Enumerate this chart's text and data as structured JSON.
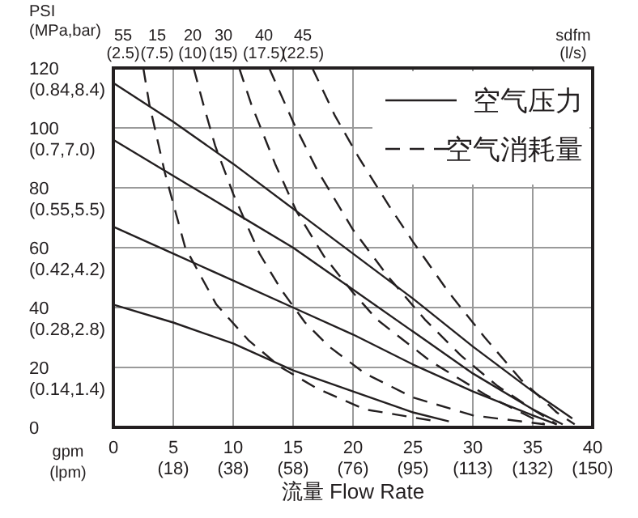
{
  "chart_data": {
    "type": "line",
    "xlabel": "流量 Flow Rate",
    "ylabel": "PSI\n(MPa,bar)",
    "xlim": [
      0,
      40
    ],
    "ylim": [
      0,
      120
    ],
    "xticks": [
      0,
      5,
      10,
      15,
      20,
      25,
      30,
      35,
      40
    ],
    "yticks": [
      0,
      20,
      40,
      60,
      80,
      100,
      120
    ],
    "grid": true,
    "legend": "top right",
    "annotations": [
      "gpm\n(lpm)",
      "sdfm\n(l/s)",
      "(18)",
      "(38)",
      "(58)",
      "(76)",
      "(95)",
      "(113)",
      "(132)",
      "(150)",
      "(0.14,1.4)",
      "(0.28,2.8)",
      "(0.42,4.2)",
      "(0.55,5.5)",
      "(0.7,7.0)",
      "(0.84,8.4)",
      "55\n(2.5)",
      "15\n(7.5)",
      "20\n(10)",
      "30\n(15)",
      "40\n(17.5)",
      "45\n(22.5)"
    ],
    "series": [
      {
        "name": "空气压力",
        "color": "#231f20",
        "line_style": "solid",
        "x": [
          0,
          5,
          10,
          15,
          20,
          25,
          30,
          35,
          38.3
        ],
        "values": [
          115,
          102,
          88,
          73,
          58,
          43,
          27,
          12,
          3
        ]
      },
      {
        "color": "#231f20",
        "line_style": "solid",
        "x": [
          0,
          5,
          10,
          15,
          20,
          25,
          30,
          35,
          37.5
        ],
        "values": [
          96,
          84,
          72,
          60,
          46,
          32,
          18,
          6,
          1
        ]
      },
      {
        "color": "#231f20",
        "line_style": "solid",
        "x": [
          0,
          5,
          10,
          15,
          20,
          25,
          30,
          35,
          37
        ],
        "values": [
          67,
          58,
          49,
          40,
          31,
          21,
          12,
          4,
          1
        ]
      },
      {
        "color": "#231f20",
        "line_style": "solid",
        "x": [
          0,
          5,
          10,
          15,
          20,
          25,
          28
        ],
        "values": [
          41,
          35,
          28,
          19,
          12,
          5,
          2
        ]
      },
      {
        "name": "空气消耗量",
        "color": "#231f20",
        "line_style": "dashed",
        "x": [
          2.5,
          3,
          4.3,
          6,
          8.6,
          11.3,
          14,
          17,
          21,
          27
        ],
        "values": [
          120,
          108,
          85,
          60,
          41,
          29,
          20,
          13,
          6,
          2
        ]
      },
      {
        "color": "#231f20",
        "line_style": "dashed",
        "x": [
          6.7,
          7.5,
          8.5,
          10,
          12.2,
          14,
          16,
          18,
          21,
          25,
          30,
          36
        ],
        "values": [
          120,
          108,
          94,
          78,
          58,
          46,
          35,
          27,
          18,
          10,
          4,
          1
        ]
      },
      {
        "color": "#231f20",
        "line_style": "dashed",
        "x": [
          10.5,
          11.5,
          13.5,
          15.3,
          17.6,
          20,
          22,
          26.5,
          31,
          36
        ],
        "values": [
          120,
          108,
          88,
          72,
          57,
          45,
          36,
          22,
          11,
          1
        ]
      },
      {
        "color": "#231f20",
        "line_style": "dashed",
        "x": [
          13,
          15,
          17,
          20,
          23,
          26,
          29,
          32,
          35,
          37
        ],
        "values": [
          120,
          102,
          86,
          66,
          50,
          36,
          24,
          14,
          6,
          1
        ]
      },
      {
        "color": "#231f20",
        "line_style": "dashed",
        "x": [
          16.6,
          18.5,
          20.5,
          23,
          25,
          28,
          31,
          34,
          37,
          38.5
        ],
        "values": [
          120,
          104,
          90,
          74,
          62,
          45,
          30,
          16,
          5,
          1
        ]
      }
    ]
  }
}
